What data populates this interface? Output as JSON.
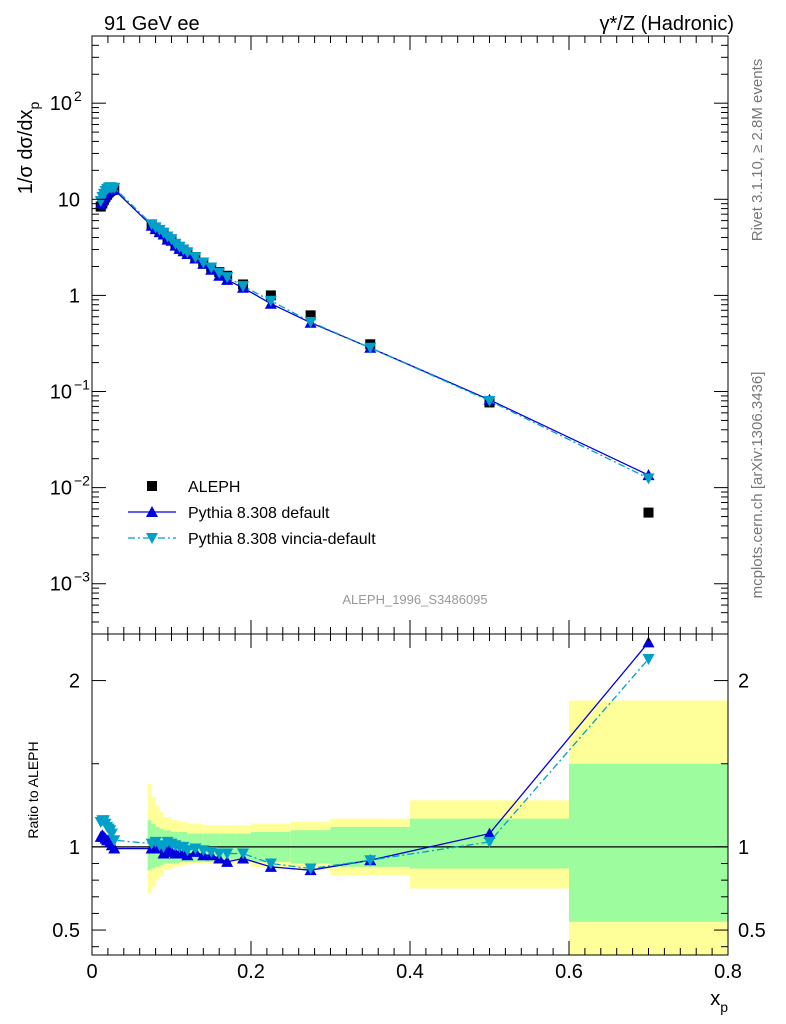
{
  "header": {
    "left": "91 GeV ee",
    "right_main": "γ*/Z (Hadronic)"
  },
  "side": {
    "rivet": "Rivet 3.1.10, ≥ 2.8M events",
    "mcplots": "mcplots.cern.ch [arXiv:1306.3436]"
  },
  "analysis_tag": "ALEPH_1996_S3486095",
  "colors": {
    "aleph": "#000000",
    "pythia_default": "#0000dd",
    "vincia": "#00a0c8",
    "band_inner": "#9dfc9d",
    "band_outer": "#ffff99"
  },
  "chart_data": [
    {
      "type": "line",
      "yscale": "log",
      "ylabel": "1/σ dσ/dx",
      "ylabel_sub": "p",
      "xlim": [
        0,
        0.8
      ],
      "ylim": [
        0.0003,
        500
      ],
      "yticks": [
        {
          "v": 0.001,
          "b": "10",
          "e": "−3"
        },
        {
          "v": 0.01,
          "b": "10",
          "e": "−2"
        },
        {
          "v": 0.1,
          "b": "10",
          "e": "−1"
        },
        {
          "v": 1,
          "b": "1",
          "e": ""
        },
        {
          "v": 10,
          "b": "10",
          "e": ""
        },
        {
          "v": 100,
          "b": "10",
          "e": "2"
        }
      ],
      "legend_position": "bottom-left",
      "legend": [
        "ALEPH",
        "Pythia 8.308 default",
        "Pythia 8.308 vincia-default"
      ],
      "series": [
        {
          "name": "ALEPH",
          "marker": "square",
          "x": [
            0.011,
            0.013,
            0.015,
            0.017,
            0.019,
            0.021,
            0.023,
            0.025,
            0.028,
            0.075,
            0.08,
            0.085,
            0.09,
            0.095,
            0.1,
            0.105,
            0.11,
            0.115,
            0.12,
            0.13,
            0.14,
            0.15,
            0.16,
            0.17,
            0.19,
            0.225,
            0.275,
            0.35,
            0.5,
            0.7
          ],
          "y": [
            8.4,
            9.1,
            9.9,
            10.6,
            11.2,
            11.8,
            12.2,
            12.5,
            12.7,
            5.4,
            5.0,
            4.7,
            4.4,
            4.0,
            3.8,
            3.4,
            3.2,
            3.0,
            2.8,
            2.5,
            2.2,
            1.95,
            1.75,
            1.6,
            1.3,
            1.0,
            0.62,
            0.31,
            0.077,
            0.0055
          ]
        },
        {
          "name": "Pythia 8.308 default",
          "marker": "triangle-up",
          "x": [
            0.011,
            0.013,
            0.015,
            0.017,
            0.019,
            0.021,
            0.023,
            0.025,
            0.028,
            0.075,
            0.08,
            0.085,
            0.09,
            0.095,
            0.1,
            0.105,
            0.11,
            0.115,
            0.12,
            0.13,
            0.14,
            0.15,
            0.16,
            0.17,
            0.19,
            0.225,
            0.275,
            0.35,
            0.5,
            0.7
          ],
          "y": [
            8.9,
            9.6,
            10.4,
            11.1,
            11.7,
            12.3,
            12.6,
            12.5,
            12.6,
            5.3,
            4.9,
            4.55,
            4.3,
            3.8,
            3.7,
            3.3,
            3.05,
            2.88,
            2.7,
            2.42,
            2.13,
            1.85,
            1.6,
            1.45,
            1.2,
            0.82,
            0.52,
            0.285,
            0.082,
            0.0135
          ]
        },
        {
          "name": "Pythia 8.308 vincia-default",
          "marker": "triangle-down",
          "x": [
            0.011,
            0.013,
            0.015,
            0.017,
            0.019,
            0.021,
            0.023,
            0.025,
            0.028,
            0.075,
            0.08,
            0.085,
            0.09,
            0.095,
            0.1,
            0.105,
            0.11,
            0.115,
            0.12,
            0.13,
            0.14,
            0.15,
            0.16,
            0.17,
            0.19,
            0.225,
            0.275,
            0.35,
            0.5,
            0.7
          ],
          "y": [
            9.6,
            10.6,
            11.4,
            12.2,
            12.8,
            13.2,
            13.4,
            13.2,
            13.2,
            5.5,
            5.1,
            4.8,
            4.5,
            4.1,
            3.85,
            3.45,
            3.2,
            3.0,
            2.8,
            2.5,
            2.2,
            1.95,
            1.72,
            1.55,
            1.25,
            0.88,
            0.53,
            0.285,
            0.08,
            0.0125
          ]
        }
      ]
    },
    {
      "type": "line",
      "ylabel": "Ratio to ALEPH",
      "xlabel": "x",
      "xlabel_sub": "p",
      "xlim": [
        0,
        0.8
      ],
      "ylim": [
        0.35,
        2.28
      ],
      "yticks": [
        0.5,
        1,
        2
      ],
      "xticks": [
        0,
        0.2,
        0.4,
        0.6,
        0.8
      ],
      "xtick_labels": [
        "0",
        "0.2",
        "0.4",
        "0.6",
        "0.8"
      ],
      "bands": [
        {
          "x0": 0.07,
          "x1": 0.075,
          "inner": [
            0.86,
            1.16
          ],
          "outer": [
            0.72,
            1.38
          ]
        },
        {
          "x0": 0.075,
          "x1": 0.08,
          "inner": [
            0.87,
            1.14
          ],
          "outer": [
            0.76,
            1.3
          ]
        },
        {
          "x0": 0.08,
          "x1": 0.085,
          "inner": [
            0.88,
            1.12
          ],
          "outer": [
            0.8,
            1.25
          ]
        },
        {
          "x0": 0.085,
          "x1": 0.09,
          "inner": [
            0.89,
            1.11
          ],
          "outer": [
            0.83,
            1.21
          ]
        },
        {
          "x0": 0.09,
          "x1": 0.1,
          "inner": [
            0.9,
            1.1
          ],
          "outer": [
            0.86,
            1.18
          ]
        },
        {
          "x0": 0.1,
          "x1": 0.11,
          "inner": [
            0.9,
            1.09
          ],
          "outer": [
            0.88,
            1.16
          ]
        },
        {
          "x0": 0.11,
          "x1": 0.12,
          "inner": [
            0.91,
            1.09
          ],
          "outer": [
            0.89,
            1.15
          ]
        },
        {
          "x0": 0.12,
          "x1": 0.14,
          "inner": [
            0.91,
            1.08
          ],
          "outer": [
            0.9,
            1.14
          ]
        },
        {
          "x0": 0.14,
          "x1": 0.16,
          "inner": [
            0.91,
            1.08
          ],
          "outer": [
            0.9,
            1.13
          ]
        },
        {
          "x0": 0.16,
          "x1": 0.18,
          "inner": [
            0.92,
            1.08
          ],
          "outer": [
            0.9,
            1.13
          ]
        },
        {
          "x0": 0.18,
          "x1": 0.2,
          "inner": [
            0.92,
            1.08
          ],
          "outer": [
            0.9,
            1.13
          ]
        },
        {
          "x0": 0.2,
          "x1": 0.25,
          "inner": [
            0.91,
            1.09
          ],
          "outer": [
            0.88,
            1.14
          ]
        },
        {
          "x0": 0.25,
          "x1": 0.3,
          "inner": [
            0.9,
            1.1
          ],
          "outer": [
            0.86,
            1.15
          ]
        },
        {
          "x0": 0.3,
          "x1": 0.4,
          "inner": [
            0.88,
            1.12
          ],
          "outer": [
            0.83,
            1.17
          ]
        },
        {
          "x0": 0.4,
          "x1": 0.6,
          "inner": [
            0.87,
            1.17
          ],
          "outer": [
            0.75,
            1.28
          ]
        },
        {
          "x0": 0.6,
          "x1": 0.8,
          "inner": [
            0.55,
            1.5
          ],
          "outer": [
            0.2,
            1.88
          ]
        }
      ],
      "series": [
        {
          "name": "Pythia 8.308 default",
          "marker": "triangle-up",
          "x": [
            0.011,
            0.013,
            0.015,
            0.017,
            0.019,
            0.021,
            0.023,
            0.025,
            0.028,
            0.075,
            0.08,
            0.085,
            0.09,
            0.095,
            0.1,
            0.105,
            0.11,
            0.115,
            0.12,
            0.13,
            0.14,
            0.15,
            0.16,
            0.17,
            0.19,
            0.225,
            0.275,
            0.35,
            0.5,
            0.7
          ],
          "y": [
            1.06,
            1.07,
            1.06,
            1.05,
            1.04,
            1.04,
            1.03,
            1.01,
            0.99,
            0.99,
            0.99,
            0.99,
            0.96,
            0.99,
            0.97,
            0.96,
            0.96,
            0.96,
            0.95,
            0.97,
            0.95,
            0.95,
            0.93,
            0.91,
            0.93,
            0.88,
            0.86,
            0.92,
            1.08,
            2.23
          ]
        },
        {
          "name": "Pythia 8.308 vincia-default",
          "marker": "triangle-down",
          "x": [
            0.011,
            0.013,
            0.015,
            0.017,
            0.019,
            0.021,
            0.023,
            0.025,
            0.028,
            0.075,
            0.08,
            0.085,
            0.09,
            0.095,
            0.1,
            0.105,
            0.11,
            0.115,
            0.12,
            0.13,
            0.14,
            0.15,
            0.16,
            0.17,
            0.19,
            0.225,
            0.275,
            0.35,
            0.5,
            0.7
          ],
          "y": [
            1.15,
            1.16,
            1.16,
            1.14,
            1.12,
            1.11,
            1.1,
            1.08,
            1.04,
            1.02,
            1.03,
            1.01,
            1.0,
            1.03,
            1.02,
            1.01,
            1.0,
            1.0,
            0.98,
            0.99,
            0.98,
            0.97,
            0.96,
            0.96,
            0.96,
            0.9,
            0.87,
            0.92,
            1.03,
            2.13
          ]
        }
      ]
    }
  ]
}
